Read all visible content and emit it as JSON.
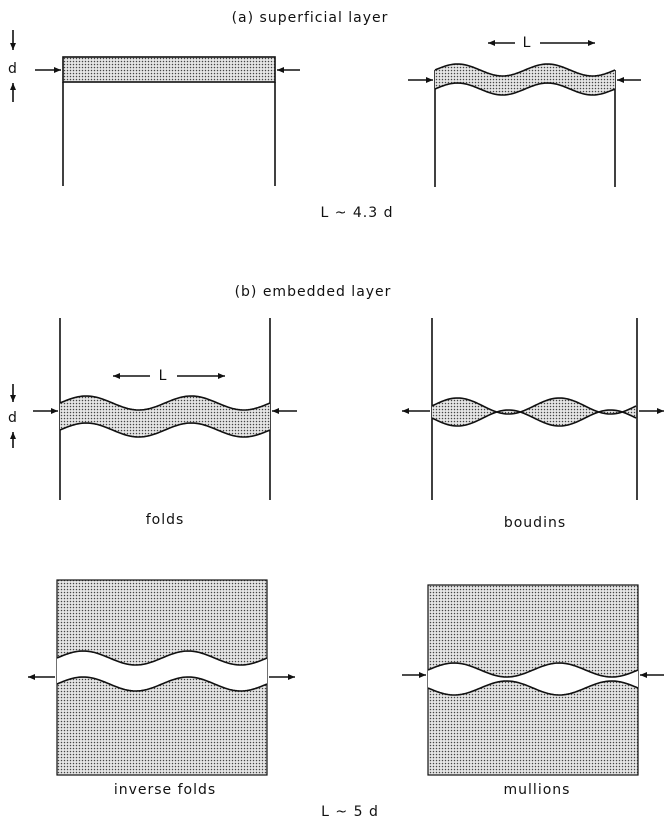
{
  "panel_a": {
    "title": "(a) superficial layer",
    "thickness_label": "d",
    "wavelength_label": "L",
    "relation": "L ~ 4.3 d"
  },
  "panel_b": {
    "title": "(b) embedded layer",
    "thickness_label": "d",
    "wavelength_label": "L",
    "captions": [
      "folds",
      "boudins",
      "inverse folds",
      "mullions"
    ],
    "relation": "L ~ 5 d"
  }
}
